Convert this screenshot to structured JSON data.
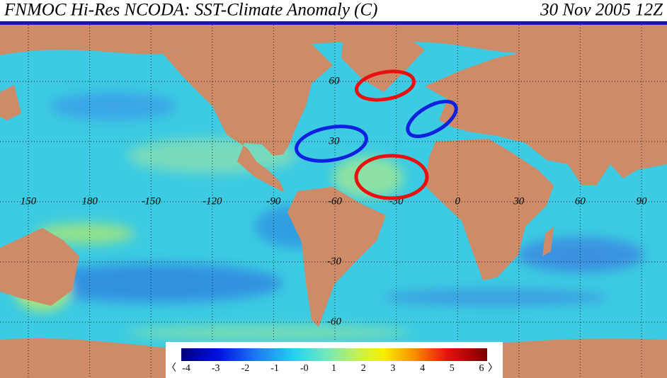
{
  "title": "FNMOC Hi-Res NCODA: SST-Climate Anomaly (C)",
  "date": "30 Nov 2005 12Z",
  "longitude_labels": [
    "150",
    "180",
    "-150",
    "-120",
    "-90",
    "-60",
    "-30",
    "0",
    "30",
    "60",
    "90"
  ],
  "latitude_labels": [
    "60",
    "30",
    "-30",
    "-60"
  ],
  "colorbar": {
    "left_arrow": "〈",
    "labels": [
      "-4",
      "-3",
      "-2",
      "-1",
      "-0",
      "1",
      "2",
      "3",
      "4",
      "5",
      "6"
    ],
    "right_arrow": "〉"
  }
}
